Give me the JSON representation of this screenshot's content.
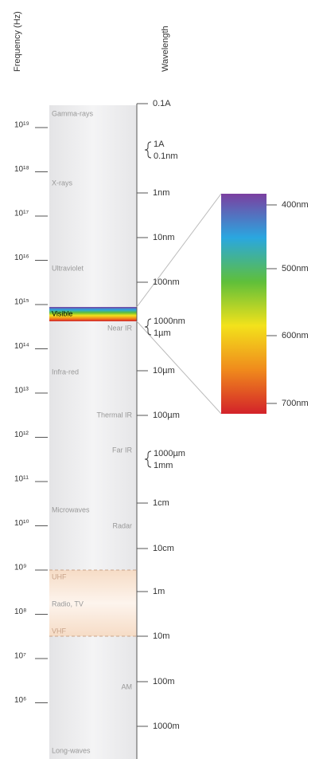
{
  "axes": {
    "frequency_title": "Frequency (Hz)",
    "wavelength_title": "Wavelength"
  },
  "frequency_labels": [
    "10¹⁹",
    "10¹⁸",
    "10¹⁷",
    "10¹⁶",
    "10¹⁵",
    "10¹⁴",
    "10¹³",
    "10¹²",
    "10¹¹",
    "10¹⁰",
    "10⁹",
    "10⁸",
    "10⁷",
    "10⁶"
  ],
  "wavelength_labels": [
    [
      "0.1A"
    ],
    [
      "1A",
      "0.1nm"
    ],
    [
      "1nm"
    ],
    [
      "10nm"
    ],
    [
      "100nm"
    ],
    [
      "1000nm",
      "1µm"
    ],
    [
      "10µm"
    ],
    [
      "100µm"
    ],
    [
      "1000µm",
      "1mm"
    ],
    [
      "1cm"
    ],
    [
      "10cm"
    ],
    [
      "1m"
    ],
    [
      "10m"
    ],
    [
      "100m"
    ],
    [
      "1000m"
    ]
  ],
  "regions": {
    "gamma": "Gamma-rays",
    "xray": "X-rays",
    "uv": "Ultraviolet",
    "visible": "Visible",
    "near_ir": "Near IR",
    "ir": "Infra-red",
    "thermal_ir": "Thermal IR",
    "far_ir": "Far IR",
    "microwaves": "Microwaves",
    "radar": "Radar",
    "uhf": "UHF",
    "radio": "Radio, TV",
    "vhf": "VHF",
    "am": "AM",
    "long": "Long-waves"
  },
  "visible_scale": [
    "400nm",
    "500nm",
    "600nm",
    "700nm"
  ]
}
